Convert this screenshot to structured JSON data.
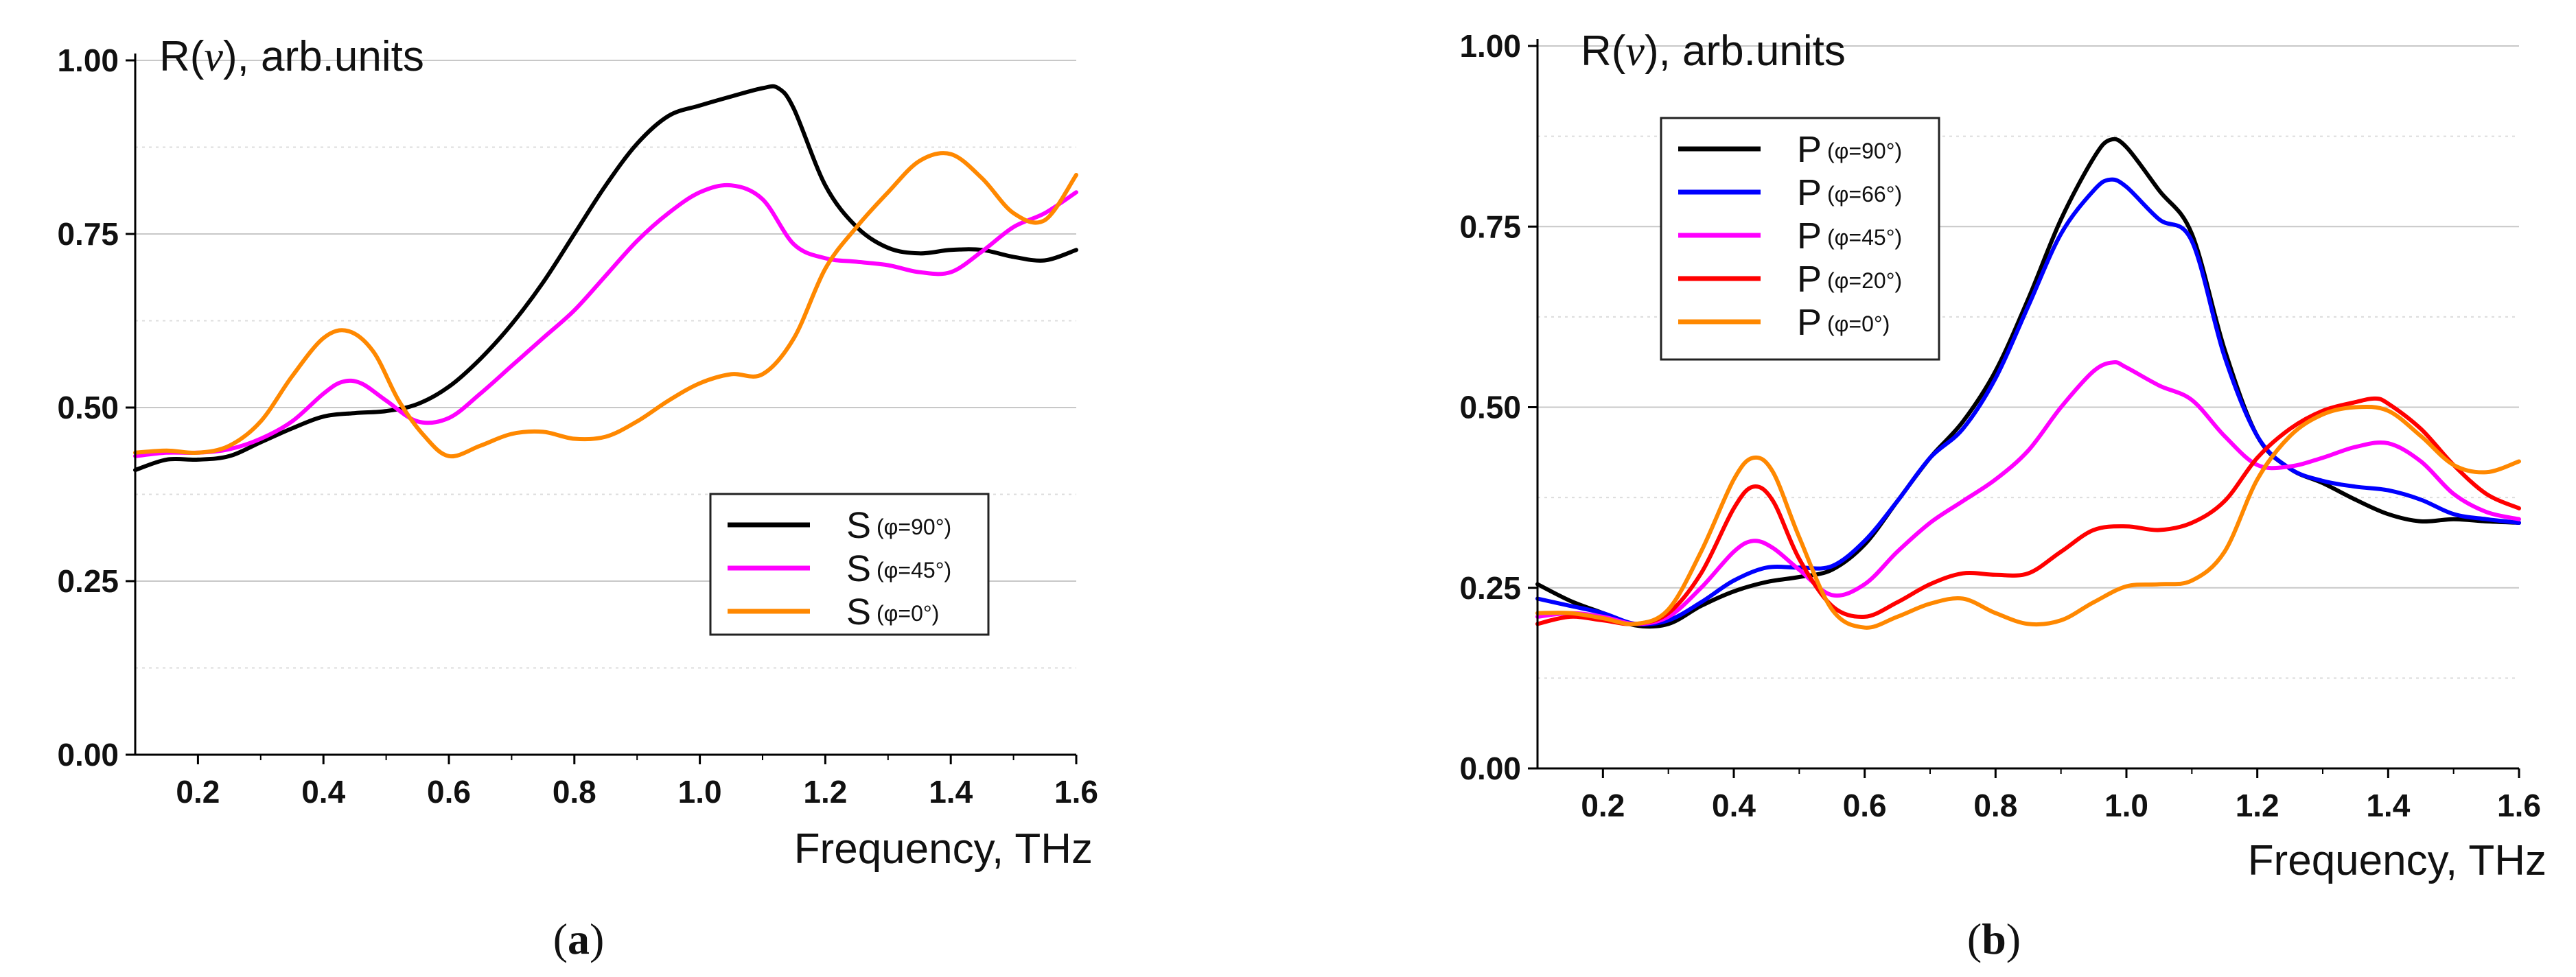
{
  "chart_data": [
    {
      "type": "line",
      "panel_label": "(a)",
      "panel_letter": "a",
      "ylabel_prefix": "R(",
      "ylabel_symbol": "ν",
      "ylabel_suffix": "), arb.units",
      "xlabel": "Frequency, THz",
      "xlim": [
        0.1,
        1.6
      ],
      "ylim": [
        0.0,
        1.0
      ],
      "x_ticks": [
        0.2,
        0.4,
        0.6,
        0.8,
        1.0,
        1.2,
        1.4,
        1.6
      ],
      "x_tick_labels": [
        "0.2",
        "0.4",
        "0.6",
        "0.8",
        "1.0",
        "1.2",
        "1.4",
        "1.6"
      ],
      "y_ticks": [
        0.0,
        0.25,
        0.5,
        0.75,
        1.0
      ],
      "y_tick_labels": [
        "0.00",
        "0.25",
        "0.50",
        "0.75",
        "1.00"
      ],
      "grid": "horizontal",
      "legend_position": "lower-right",
      "series": [
        {
          "name": "S",
          "subscript": "(φ=90°)",
          "color": "#000000",
          "x": [
            0.1,
            0.15,
            0.2,
            0.25,
            0.3,
            0.35,
            0.4,
            0.45,
            0.5,
            0.55,
            0.6,
            0.65,
            0.7,
            0.75,
            0.8,
            0.85,
            0.9,
            0.95,
            1.0,
            1.05,
            1.1,
            1.125,
            1.15,
            1.2,
            1.25,
            1.3,
            1.35,
            1.4,
            1.45,
            1.5,
            1.55,
            1.6
          ],
          "y": [
            0.41,
            0.425,
            0.425,
            0.43,
            0.45,
            0.47,
            0.487,
            0.492,
            0.495,
            0.505,
            0.53,
            0.57,
            0.62,
            0.68,
            0.75,
            0.82,
            0.88,
            0.92,
            0.935,
            0.948,
            0.96,
            0.96,
            0.93,
            0.82,
            0.76,
            0.73,
            0.722,
            0.727,
            0.727,
            0.717,
            0.712,
            0.727
          ]
        },
        {
          "name": "S",
          "subscript": "(φ=45°)",
          "color": "#ff00ff",
          "x": [
            0.1,
            0.15,
            0.2,
            0.25,
            0.3,
            0.35,
            0.4,
            0.43,
            0.46,
            0.5,
            0.55,
            0.6,
            0.65,
            0.7,
            0.75,
            0.8,
            0.85,
            0.9,
            0.95,
            1.0,
            1.05,
            1.1,
            1.15,
            1.2,
            1.25,
            1.3,
            1.35,
            1.4,
            1.45,
            1.5,
            1.55,
            1.6
          ],
          "y": [
            0.43,
            0.435,
            0.435,
            0.44,
            0.455,
            0.48,
            0.52,
            0.537,
            0.535,
            0.51,
            0.48,
            0.485,
            0.52,
            0.56,
            0.6,
            0.64,
            0.69,
            0.74,
            0.78,
            0.81,
            0.82,
            0.8,
            0.735,
            0.715,
            0.71,
            0.705,
            0.695,
            0.695,
            0.725,
            0.76,
            0.78,
            0.81
          ]
        },
        {
          "name": "S",
          "subscript": "(φ=0°)",
          "color": "#ff8800",
          "x": [
            0.1,
            0.15,
            0.2,
            0.25,
            0.3,
            0.35,
            0.4,
            0.44,
            0.48,
            0.52,
            0.56,
            0.6,
            0.65,
            0.7,
            0.75,
            0.8,
            0.85,
            0.9,
            0.95,
            1.0,
            1.05,
            1.1,
            1.15,
            1.2,
            1.25,
            1.3,
            1.35,
            1.4,
            1.45,
            1.5,
            1.55,
            1.6
          ],
          "y": [
            0.435,
            0.438,
            0.435,
            0.445,
            0.48,
            0.545,
            0.6,
            0.61,
            0.58,
            0.51,
            0.46,
            0.43,
            0.445,
            0.462,
            0.465,
            0.455,
            0.458,
            0.48,
            0.51,
            0.535,
            0.548,
            0.548,
            0.6,
            0.7,
            0.76,
            0.81,
            0.855,
            0.865,
            0.83,
            0.78,
            0.77,
            0.835
          ]
        }
      ]
    },
    {
      "type": "line",
      "panel_label": "(b)",
      "panel_letter": "b",
      "ylabel_prefix": "R(",
      "ylabel_symbol": "ν",
      "ylabel_suffix": "), arb.units",
      "xlabel": "Frequency, THz",
      "xlim": [
        0.1,
        1.6
      ],
      "ylim": [
        0.0,
        1.0
      ],
      "x_ticks": [
        0.2,
        0.4,
        0.6,
        0.8,
        1.0,
        1.2,
        1.4,
        1.6
      ],
      "x_tick_labels": [
        "0.2",
        "0.4",
        "0.6",
        "0.8",
        "1.0",
        "1.2",
        "1.4",
        "1.6"
      ],
      "y_ticks": [
        0.0,
        0.25,
        0.5,
        0.75,
        1.0
      ],
      "y_tick_labels": [
        "0.00",
        "0.25",
        "0.50",
        "0.75",
        "1.00"
      ],
      "grid": "horizontal",
      "legend_position": "top-left",
      "series": [
        {
          "name": "P",
          "subscript": "(φ=90°)",
          "color": "#000000",
          "x": [
            0.1,
            0.15,
            0.2,
            0.25,
            0.3,
            0.35,
            0.4,
            0.45,
            0.5,
            0.55,
            0.6,
            0.65,
            0.7,
            0.75,
            0.8,
            0.85,
            0.9,
            0.95,
            0.975,
            1.0,
            1.05,
            1.1,
            1.15,
            1.2,
            1.25,
            1.3,
            1.35,
            1.4,
            1.45,
            1.5,
            1.55,
            1.6
          ],
          "y": [
            0.255,
            0.232,
            0.215,
            0.198,
            0.2,
            0.225,
            0.245,
            0.258,
            0.265,
            0.275,
            0.31,
            0.37,
            0.43,
            0.48,
            0.55,
            0.65,
            0.76,
            0.845,
            0.87,
            0.86,
            0.8,
            0.74,
            0.58,
            0.46,
            0.415,
            0.395,
            0.372,
            0.352,
            0.342,
            0.345,
            0.342,
            0.34
          ]
        },
        {
          "name": "P",
          "subscript": "(φ=66°)",
          "color": "#0000ff",
          "x": [
            0.1,
            0.15,
            0.2,
            0.25,
            0.3,
            0.35,
            0.4,
            0.45,
            0.5,
            0.55,
            0.6,
            0.65,
            0.7,
            0.75,
            0.8,
            0.85,
            0.9,
            0.95,
            0.975,
            1.0,
            1.05,
            1.1,
            1.15,
            1.2,
            1.25,
            1.3,
            1.35,
            1.4,
            1.45,
            1.5,
            1.55,
            1.6
          ],
          "y": [
            0.235,
            0.225,
            0.215,
            0.2,
            0.205,
            0.23,
            0.26,
            0.278,
            0.278,
            0.28,
            0.315,
            0.37,
            0.43,
            0.47,
            0.54,
            0.64,
            0.74,
            0.8,
            0.815,
            0.805,
            0.76,
            0.73,
            0.57,
            0.46,
            0.415,
            0.398,
            0.39,
            0.385,
            0.372,
            0.352,
            0.345,
            0.34
          ]
        },
        {
          "name": "P",
          "subscript": "(φ=45°)",
          "color": "#ff00ff",
          "x": [
            0.1,
            0.15,
            0.2,
            0.25,
            0.3,
            0.35,
            0.4,
            0.43,
            0.46,
            0.5,
            0.55,
            0.6,
            0.65,
            0.7,
            0.75,
            0.8,
            0.85,
            0.9,
            0.95,
            0.98,
            1.0,
            1.05,
            1.1,
            1.15,
            1.2,
            1.25,
            1.3,
            1.35,
            1.4,
            1.45,
            1.5,
            1.55,
            1.6
          ],
          "y": [
            0.21,
            0.215,
            0.21,
            0.2,
            0.21,
            0.25,
            0.3,
            0.315,
            0.305,
            0.275,
            0.24,
            0.255,
            0.3,
            0.34,
            0.37,
            0.4,
            0.44,
            0.5,
            0.55,
            0.562,
            0.555,
            0.53,
            0.51,
            0.46,
            0.42,
            0.418,
            0.43,
            0.445,
            0.45,
            0.425,
            0.38,
            0.355,
            0.345
          ]
        },
        {
          "name": "P",
          "subscript": "(φ=20°)",
          "color": "#ff0000",
          "x": [
            0.1,
            0.15,
            0.2,
            0.25,
            0.3,
            0.35,
            0.4,
            0.43,
            0.46,
            0.5,
            0.55,
            0.6,
            0.65,
            0.7,
            0.75,
            0.8,
            0.85,
            0.9,
            0.95,
            1.0,
            1.05,
            1.1,
            1.15,
            1.2,
            1.25,
            1.3,
            1.35,
            1.38,
            1.4,
            1.45,
            1.5,
            1.55,
            1.6
          ],
          "y": [
            0.2,
            0.21,
            0.205,
            0.2,
            0.215,
            0.27,
            0.36,
            0.39,
            0.37,
            0.29,
            0.225,
            0.21,
            0.23,
            0.255,
            0.27,
            0.268,
            0.27,
            0.3,
            0.33,
            0.335,
            0.33,
            0.34,
            0.37,
            0.43,
            0.47,
            0.495,
            0.507,
            0.512,
            0.505,
            0.47,
            0.42,
            0.38,
            0.36
          ]
        },
        {
          "name": "P",
          "subscript": "(φ=0°)",
          "color": "#ff8800",
          "x": [
            0.1,
            0.15,
            0.2,
            0.25,
            0.3,
            0.35,
            0.4,
            0.43,
            0.46,
            0.5,
            0.55,
            0.6,
            0.65,
            0.7,
            0.75,
            0.8,
            0.85,
            0.9,
            0.95,
            1.0,
            1.05,
            1.1,
            1.15,
            1.2,
            1.25,
            1.3,
            1.35,
            1.4,
            1.45,
            1.5,
            1.55,
            1.6
          ],
          "y": [
            0.215,
            0.215,
            0.208,
            0.2,
            0.22,
            0.3,
            0.4,
            0.43,
            0.41,
            0.32,
            0.22,
            0.195,
            0.21,
            0.228,
            0.235,
            0.215,
            0.2,
            0.205,
            0.23,
            0.252,
            0.255,
            0.26,
            0.3,
            0.4,
            0.46,
            0.49,
            0.5,
            0.495,
            0.46,
            0.42,
            0.41,
            0.425
          ]
        }
      ]
    }
  ]
}
